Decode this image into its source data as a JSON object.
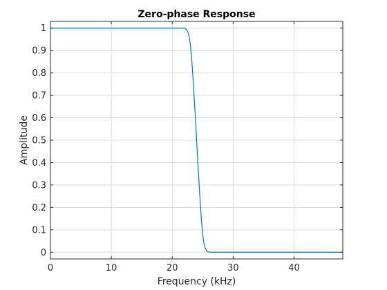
{
  "colors": {
    "line": "#0072BD",
    "grid": "#dcdcdc",
    "axis": "#262626",
    "background": "#ffffff"
  },
  "chart_data": {
    "type": "line",
    "title": "Zero-phase Response",
    "xlabel": "Frequency (kHz)",
    "ylabel": "Amplitude",
    "xlim": [
      0,
      48
    ],
    "ylim": [
      -0.03,
      1.03
    ],
    "grid": true,
    "x_ticks": [
      0,
      10,
      20,
      30,
      40
    ],
    "y_ticks": [
      0,
      0.1,
      0.2,
      0.3,
      0.4,
      0.5,
      0.6,
      0.7,
      0.8,
      0.9,
      1
    ],
    "x_tick_labels": [
      "0",
      "10",
      "20",
      "30",
      "40"
    ],
    "y_tick_labels": [
      "0",
      "0.1",
      "0.2",
      "0.3",
      "0.4",
      "0.5",
      "0.6",
      "0.7",
      "0.8",
      "0.9",
      "1"
    ],
    "series": [
      {
        "x": [
          0,
          5,
          10,
          15,
          20,
          21.5,
          22.0,
          22.3,
          22.6,
          22.8,
          23.0,
          23.2,
          23.4,
          23.6,
          23.8,
          24.0,
          24.2,
          24.4,
          24.6,
          24.8,
          25.0,
          25.2,
          25.4,
          25.6,
          25.8,
          26.0,
          26.3,
          27,
          30,
          35,
          40,
          45,
          48
        ],
        "y": [
          1,
          1,
          1,
          1,
          1,
          1,
          1,
          0.995,
          0.98,
          0.96,
          0.92,
          0.86,
          0.78,
          0.69,
          0.6,
          0.5,
          0.4,
          0.31,
          0.22,
          0.14,
          0.08,
          0.04,
          0.02,
          0.008,
          0.003,
          0.001,
          0,
          0,
          0,
          0,
          0,
          0,
          0
        ]
      }
    ]
  }
}
